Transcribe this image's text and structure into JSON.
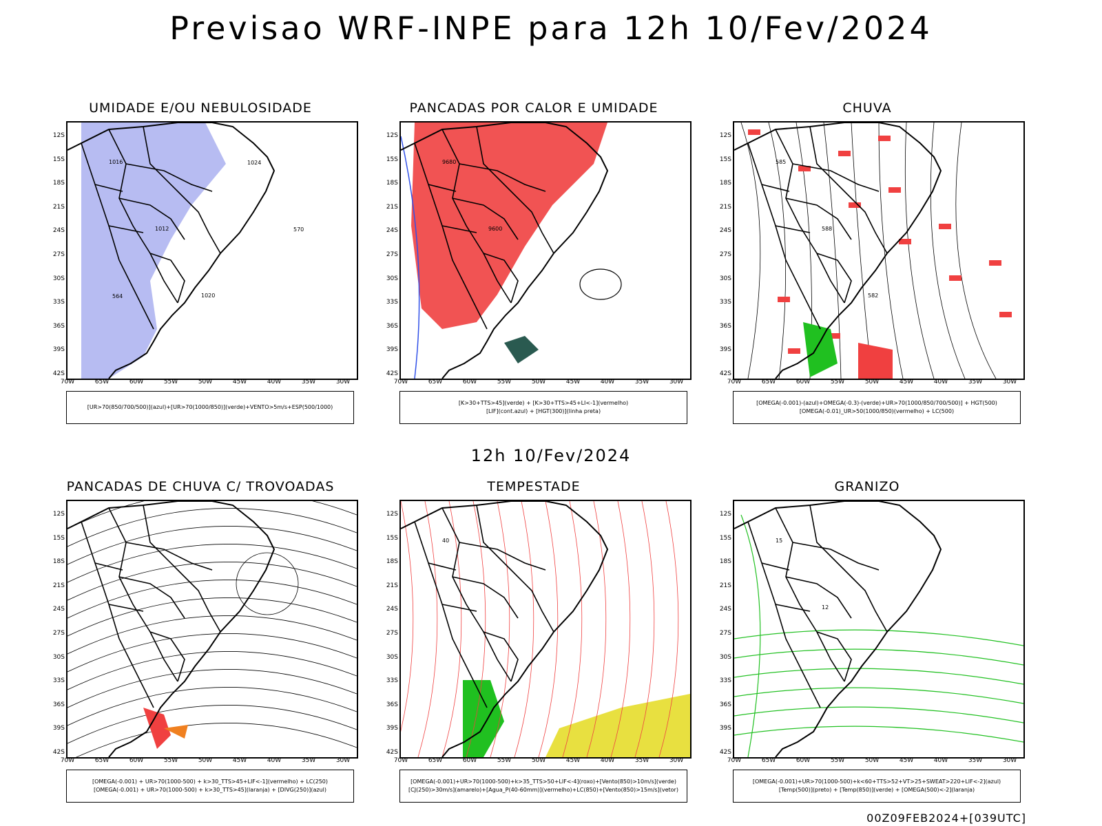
{
  "title": "Previsao WRF-INPE  para 12h 10/Fev/2024",
  "subtitle": "12h 10/Fev/2024",
  "footer": "00Z09FEB2024+[039UTC]",
  "axes": {
    "lat_labels": [
      "12S",
      "15S",
      "18S",
      "21S",
      "24S",
      "27S",
      "30S",
      "33S",
      "36S",
      "39S",
      "42S"
    ],
    "lon_labels": [
      "70W",
      "65W",
      "60W",
      "55W",
      "50W",
      "45W",
      "40W",
      "35W",
      "30W"
    ]
  },
  "panels": [
    {
      "title": "UMIDADE E/OU NEBULOSIDADE",
      "legend": [
        "[UR>70(850/700/500)](azul)+[UR>70(1000/850)](verde)+VENTO>5m/s+ESP(500/1000)"
      ],
      "contour_labels": [
        "1016",
        "1012",
        "1020",
        "1024",
        "570",
        "564"
      ]
    },
    {
      "title": "PANCADAS POR CALOR E UMIDADE",
      "legend": [
        "[K>30+TTS>45](verde) + [K>30+TTS>45+LI<-1](vermelho)",
        "[LIF](cont.azul) + [HGT(300)](linha preta)"
      ],
      "contour_labels": [
        "9680",
        "9600"
      ]
    },
    {
      "title": "CHUVA",
      "legend": [
        "[OMEGA(-0.001)-(azul)+OMEGA(-0.3)-(verde)+UR>70(1000/850/700/500)] + HGT(500)",
        "[OMEGA(-0.01)_UR>50(1000/850)(vermelho) + LC(500)"
      ],
      "contour_labels": [
        "585",
        "588",
        "582"
      ]
    },
    {
      "title": "PANCADAS DE CHUVA C/ TROVOADAS",
      "legend": [
        "[OMEGA(-0.001) + UR>70(1000-500) + k>30_TTS>45+LIF<-1](vermelho) + LC(250)",
        "[OMEGA(-0.001) + UR>70(1000-500) + k>30_TTS>45](laranja) + [DIVG(250)](azul)"
      ],
      "contour_labels": []
    },
    {
      "title": "TEMPESTADE",
      "legend": [
        "[OMEGA(-0.001)+UR>70(1000-500)+k>35_TTS>50+LIF<-4](roxo)+[Vento(850)>10m/s](verde)",
        "[CJ(250)>30m/s](amarelo)+[Agua_P(40-60mm)](vermelho)+LC(850)+[Vento(850)>15m/s](vetor)"
      ],
      "contour_labels": [
        "40"
      ]
    },
    {
      "title": "GRANIZO",
      "legend": [
        "[OMEGA(-0.001)+UR>70(1000-500)+k<60+TTS>52+VT>25+SWEAT>220+LIF<-2](azul)",
        "[Temp(500)](preto) + [Temp(850)](verde) + [OMEGA(500)<-2](laranja)"
      ],
      "contour_labels": [
        "15",
        "12"
      ]
    }
  ],
  "colors": {
    "red": "#f04040",
    "blue": "#3050e8",
    "green": "#20c020",
    "lavender": "#aab0f0",
    "orange": "#f08020",
    "yellow": "#e8e040",
    "teal": "#2a5a50",
    "black": "#000000"
  }
}
